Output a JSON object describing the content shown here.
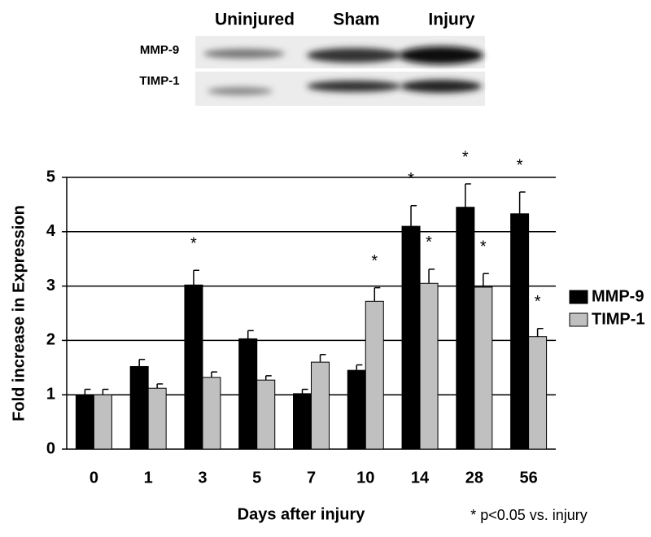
{
  "blot": {
    "columns": [
      "Uninjured",
      "Sham",
      "Injury"
    ],
    "rows": [
      "MMP-9",
      "TIMP-1"
    ]
  },
  "chart_data": {
    "type": "bar",
    "y_label": "Fold increase in Expression",
    "x_label": "Days after injury",
    "footnote": "* p<0.05 vs. injury",
    "categories": [
      "0",
      "1",
      "3",
      "5",
      "7",
      "10",
      "14",
      "28",
      "56"
    ],
    "series": [
      {
        "name": "MMP-9",
        "color": "#000000",
        "values": [
          1.0,
          1.52,
          3.02,
          2.03,
          1.02,
          1.45,
          4.1,
          4.45,
          4.33
        ],
        "errors": [
          0.1,
          0.13,
          0.27,
          0.15,
          0.08,
          0.1,
          0.38,
          0.43,
          0.4
        ],
        "annotations": [
          null,
          null,
          "*",
          null,
          null,
          null,
          "*",
          "*",
          "*"
        ]
      },
      {
        "name": "TIMP-1",
        "color": "#c0c0c0",
        "values": [
          1.0,
          1.12,
          1.32,
          1.27,
          1.6,
          2.72,
          3.05,
          2.98,
          2.07
        ],
        "errors": [
          0.1,
          0.08,
          0.1,
          0.08,
          0.14,
          0.25,
          0.26,
          0.25,
          0.15
        ],
        "annotations": [
          null,
          null,
          null,
          null,
          null,
          "*",
          "*",
          "*",
          "*"
        ]
      }
    ],
    "ylim": [
      0,
      5
    ],
    "yticks": [
      0,
      1,
      2,
      3,
      4,
      5
    ],
    "grid": true,
    "legend": "right"
  }
}
